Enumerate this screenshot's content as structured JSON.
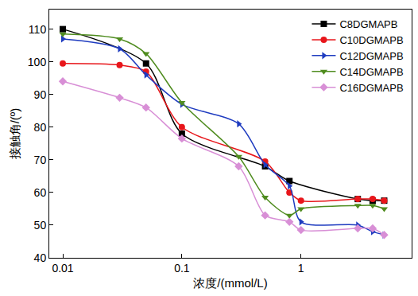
{
  "chart_data": {
    "type": "line",
    "x_label": "浓度/(mmol/L)",
    "y_label": "接触角/(º)",
    "log": "x",
    "xlim": [
      0.0077,
      8.5
    ],
    "xticks": [
      0.01,
      0.1,
      1
    ],
    "ylim": [
      40,
      116
    ],
    "yticks": [
      40,
      50,
      60,
      70,
      80,
      90,
      100,
      110
    ],
    "legend": "top right",
    "series": [
      {
        "name": "C8DGMAPB",
        "color": "#000000",
        "marker": "square",
        "x": [
          0.01,
          0.05,
          0.1,
          0.5,
          0.8,
          3,
          4,
          5
        ],
        "values": [
          110,
          99.5,
          78,
          68,
          63.5,
          58,
          57.5,
          57.5
        ]
      },
      {
        "name": "C10DGMAPB",
        "color": "#e8161b",
        "marker": "circle",
        "x": [
          0.01,
          0.03,
          0.05,
          0.1,
          0.5,
          0.8,
          1,
          3,
          4,
          5
        ],
        "values": [
          99.5,
          99,
          97,
          80,
          69.5,
          60,
          57.5,
          58,
          58,
          57.5
        ]
      },
      {
        "name": "C12DGMAPB",
        "color": "#1f3cc0",
        "marker": "triangle-right",
        "x": [
          0.01,
          0.03,
          0.05,
          0.1,
          0.3,
          0.5,
          0.8,
          1,
          3,
          4,
          5
        ],
        "values": [
          107,
          104,
          96,
          87,
          81,
          68.5,
          62,
          51,
          50,
          48,
          47
        ]
      },
      {
        "name": "C14DGMAPB",
        "color": "#4f8c1f",
        "marker": "triangle-down",
        "x": [
          0.01,
          0.03,
          0.05,
          0.1,
          0.3,
          0.5,
          0.8,
          1,
          3,
          4,
          5
        ],
        "values": [
          108.5,
          107,
          102.5,
          87.5,
          71,
          58.5,
          53,
          55,
          56,
          56,
          55
        ]
      },
      {
        "name": "C16DGMAPB",
        "color": "#d88fd6",
        "marker": "diamond",
        "x": [
          0.01,
          0.03,
          0.05,
          0.1,
          0.3,
          0.5,
          0.8,
          1,
          3,
          4,
          5
        ],
        "values": [
          94,
          89,
          86,
          76.5,
          68,
          53,
          51,
          48.5,
          49,
          49,
          47
        ]
      }
    ]
  }
}
